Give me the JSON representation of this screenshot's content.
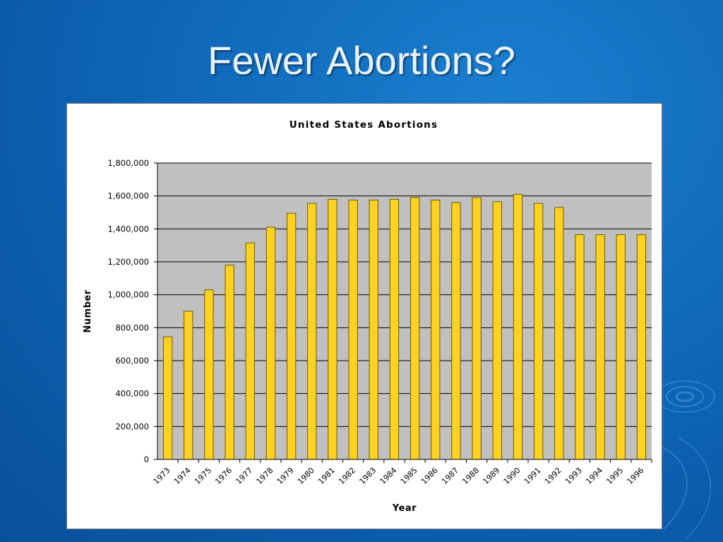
{
  "slide": {
    "title": "Fewer Abortions?"
  },
  "colors": {
    "background": "#0d63b3",
    "bar_fill": "#ffd21f",
    "bar_stroke": "#6b5a00",
    "plot_area": "#c0c0c0",
    "grid": "#000000"
  },
  "chart_data": {
    "type": "bar",
    "title": "United States Abortions",
    "xlabel": "Year",
    "ylabel": "Number",
    "ylim": [
      0,
      1800000
    ],
    "yticks": [
      "0",
      "200,000",
      "400,000",
      "600,000",
      "800,000",
      "1,000,000",
      "1,200,000",
      "1,400,000",
      "1,600,000",
      "1,800,000"
    ],
    "grid": true,
    "legend": "none",
    "categories": [
      "1973",
      "1974",
      "1975",
      "1976",
      "1977",
      "1978",
      "1979",
      "1980",
      "1981",
      "1982",
      "1983",
      "1984",
      "1985",
      "1986",
      "1987",
      "1988",
      "1989",
      "1990",
      "1991",
      "1992",
      "1993",
      "1994",
      "1995",
      "1996"
    ],
    "values": [
      745000,
      900000,
      1030000,
      1180000,
      1315000,
      1410000,
      1495000,
      1555000,
      1580000,
      1575000,
      1575000,
      1580000,
      1590000,
      1575000,
      1560000,
      1590000,
      1565000,
      1610000,
      1555000,
      1530000,
      1365000,
      1365000,
      1365000,
      1365000
    ]
  }
}
